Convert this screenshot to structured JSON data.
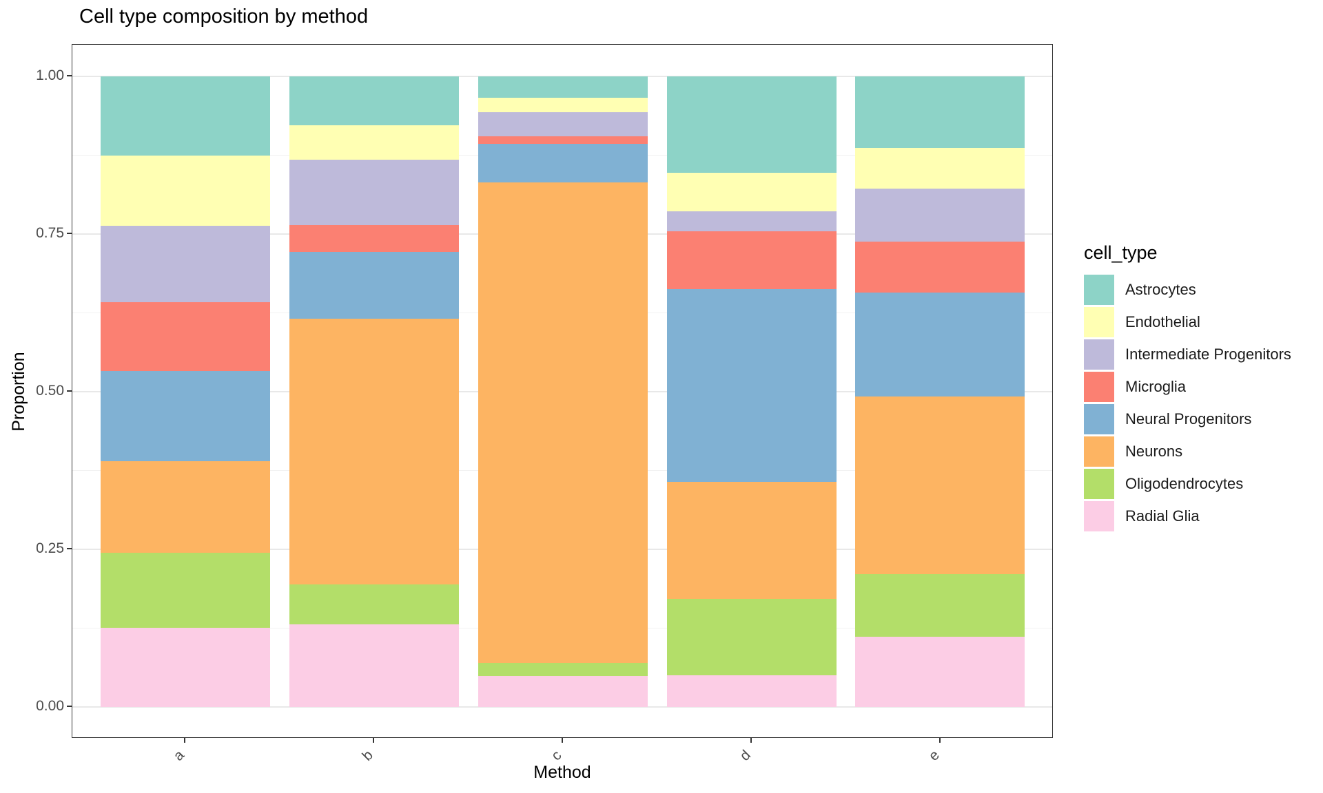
{
  "title": "Cell type composition by method",
  "axes": {
    "x_label": "Method",
    "y_label": "Proportion",
    "x_ticks": [
      "a",
      "b",
      "c",
      "d",
      "e"
    ],
    "y_ticks": [
      "1.00",
      "0.75",
      "0.50",
      "0.25",
      "0.00"
    ]
  },
  "legend": {
    "title": "cell_type",
    "entries": [
      {
        "label": "Astrocytes",
        "color": "#8DD3C7"
      },
      {
        "label": "Endothelial",
        "color": "#FFFFB3"
      },
      {
        "label": "Intermediate Progenitors",
        "color": "#BEBADA"
      },
      {
        "label": "Microglia",
        "color": "#FB8072"
      },
      {
        "label": "Neural Progenitors",
        "color": "#80B1D3"
      },
      {
        "label": "Neurons",
        "color": "#FDB462"
      },
      {
        "label": "Oligodendrocytes",
        "color": "#B3DE69"
      },
      {
        "label": "Radial Glia",
        "color": "#FCCDE5"
      }
    ]
  },
  "chart_data": {
    "type": "bar",
    "stacked": true,
    "title": "Cell type composition by method",
    "xlabel": "Method",
    "ylabel": "Proportion",
    "ylim": [
      0,
      1
    ],
    "categories": [
      "a",
      "b",
      "c",
      "d",
      "e"
    ],
    "stack_order_note": "series listed bottom-to-top",
    "series": [
      {
        "name": "Radial Glia",
        "color": "#FCCDE5",
        "values": [
          0.126,
          0.131,
          0.049,
          0.05,
          0.111
        ]
      },
      {
        "name": "Oligodendrocytes",
        "color": "#B3DE69",
        "values": [
          0.119,
          0.063,
          0.021,
          0.121,
          0.1
        ]
      },
      {
        "name": "Neurons",
        "color": "#FDB462",
        "values": [
          0.145,
          0.422,
          0.762,
          0.186,
          0.281
        ]
      },
      {
        "name": "Neural Progenitors",
        "color": "#80B1D3",
        "values": [
          0.143,
          0.106,
          0.061,
          0.306,
          0.165
        ]
      },
      {
        "name": "Microglia",
        "color": "#FB8072",
        "values": [
          0.109,
          0.042,
          0.012,
          0.091,
          0.081
        ]
      },
      {
        "name": "Intermediate Progenitors",
        "color": "#BEBADA",
        "values": [
          0.121,
          0.104,
          0.038,
          0.032,
          0.084
        ]
      },
      {
        "name": "Endothelial",
        "color": "#FFFFB3",
        "values": [
          0.111,
          0.054,
          0.023,
          0.061,
          0.065
        ]
      },
      {
        "name": "Astrocytes",
        "color": "#8DD3C7",
        "values": [
          0.126,
          0.078,
          0.034,
          0.153,
          0.113
        ]
      }
    ],
    "y_major_gridlines": [
      0,
      0.25,
      0.5,
      0.75,
      1.0
    ],
    "y_minor_gridlines": [
      0.125,
      0.375,
      0.625,
      0.875
    ],
    "legend_position": "right",
    "bar_width_fraction": 0.9
  }
}
